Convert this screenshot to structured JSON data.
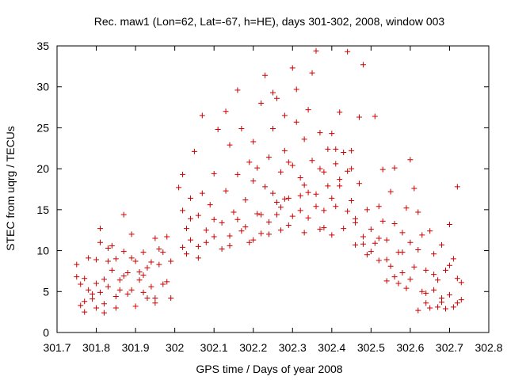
{
  "chart_data": {
    "type": "scatter",
    "title": "Rec. maw1 (Lon=62, Lat=-67, h=HE), days 301-302, 2008, window 003",
    "xlabel": "GPS time / Days of year 2008",
    "ylabel": "STEC from uqrg / TECUs",
    "xlim": [
      301.7,
      302.8
    ],
    "ylim": [
      0,
      35
    ],
    "xticks": [
      301.7,
      301.8,
      301.9,
      302.0,
      302.1,
      302.2,
      302.3,
      302.4,
      302.5,
      302.6,
      302.7,
      302.8
    ],
    "xtick_labels": [
      "301.7",
      "301.8",
      "301.9",
      "302",
      "302.1",
      "302.2",
      "302.3",
      "302.4",
      "302.5",
      "302.6",
      "302.7",
      "302.8"
    ],
    "yticks": [
      0,
      5,
      10,
      15,
      20,
      25,
      30,
      35
    ],
    "ytick_labels": [
      "0",
      "5",
      "10",
      "15",
      "20",
      "25",
      "30",
      "35"
    ],
    "marker": "plus",
    "color": "#cc0000",
    "grid": false,
    "legend": "none",
    "series": [
      {
        "points": [
          [
            301.75,
            8.3
          ],
          [
            301.75,
            6.8
          ],
          [
            301.76,
            5.9
          ],
          [
            301.76,
            3.3
          ],
          [
            301.77,
            6.6
          ],
          [
            301.77,
            2.5
          ],
          [
            301.78,
            9.1
          ],
          [
            301.78,
            5.2
          ],
          [
            301.79,
            4.1
          ],
          [
            301.8,
            6.0
          ],
          [
            301.8,
            3.0
          ],
          [
            301.81,
            11.0
          ],
          [
            301.81,
            12.7
          ],
          [
            301.82,
            6.5
          ],
          [
            301.82,
            3.5
          ],
          [
            301.83,
            8.7
          ],
          [
            301.83,
            5.6
          ],
          [
            301.84,
            10.6
          ],
          [
            301.84,
            7.6
          ],
          [
            301.85,
            4.4
          ],
          [
            301.85,
            3.0
          ],
          [
            301.86,
            6.4
          ],
          [
            301.87,
            14.4
          ],
          [
            301.87,
            9.9
          ],
          [
            301.88,
            4.7
          ],
          [
            301.88,
            7.3
          ],
          [
            301.89,
            12.0
          ],
          [
            301.89,
            5.2
          ],
          [
            301.9,
            8.7
          ],
          [
            301.9,
            3.2
          ],
          [
            301.91,
            6.4
          ],
          [
            301.92,
            9.8
          ],
          [
            301.93,
            4.2
          ],
          [
            301.93,
            7.9
          ],
          [
            301.94,
            5.6
          ],
          [
            301.95,
            11.5
          ],
          [
            301.95,
            3.6
          ],
          [
            301.96,
            8.3
          ],
          [
            301.97,
            9.8
          ],
          [
            301.98,
            6.2
          ],
          [
            301.99,
            8.7
          ],
          [
            301.99,
            4.2
          ],
          [
            301.98,
            11.7
          ],
          [
            301.97,
            5.9
          ],
          [
            301.96,
            10.2
          ],
          [
            301.94,
            8.6
          ],
          [
            301.92,
            4.9
          ],
          [
            301.91,
            7.4
          ],
          [
            301.86,
            5.2
          ],
          [
            301.79,
            4.7
          ],
          [
            301.8,
            8.9
          ],
          [
            301.82,
            2.4
          ],
          [
            301.77,
            3.8
          ],
          [
            301.83,
            10.3
          ],
          [
            301.87,
            6.9
          ],
          [
            301.89,
            9.1
          ],
          [
            301.92,
            7.0
          ],
          [
            301.95,
            4.2
          ],
          [
            301.81,
            4.9
          ],
          [
            301.85,
            9.0
          ],
          [
            302.01,
            17.7
          ],
          [
            302.02,
            14.9
          ],
          [
            302.02,
            19.3
          ],
          [
            302.03,
            12.7
          ],
          [
            302.03,
            9.6
          ],
          [
            302.04,
            16.4
          ],
          [
            302.04,
            11.3
          ],
          [
            302.05,
            22.1
          ],
          [
            302.06,
            14.3
          ],
          [
            302.06,
            10.5
          ],
          [
            302.07,
            26.5
          ],
          [
            302.07,
            17.0
          ],
          [
            302.08,
            12.5
          ],
          [
            302.09,
            15.6
          ],
          [
            302.1,
            19.4
          ],
          [
            302.1,
            11.7
          ],
          [
            302.11,
            24.8
          ],
          [
            302.12,
            13.4
          ],
          [
            302.13,
            27.0
          ],
          [
            302.13,
            17.3
          ],
          [
            302.14,
            10.6
          ],
          [
            302.14,
            22.9
          ],
          [
            302.15,
            14.7
          ],
          [
            302.16,
            19.3
          ],
          [
            302.16,
            29.6
          ],
          [
            302.17,
            12.4
          ],
          [
            302.17,
            24.9
          ],
          [
            302.18,
            16.2
          ],
          [
            302.19,
            20.8
          ],
          [
            302.19,
            11.0
          ],
          [
            302.2,
            18.5
          ],
          [
            302.2,
            23.3
          ],
          [
            302.21,
            14.5
          ],
          [
            302.22,
            28.0
          ],
          [
            302.22,
            12.1
          ],
          [
            302.23,
            31.4
          ],
          [
            302.23,
            17.8
          ],
          [
            302.24,
            21.4
          ],
          [
            302.24,
            13.5
          ],
          [
            302.25,
            29.3
          ],
          [
            302.25,
            24.9
          ],
          [
            302.26,
            15.9
          ],
          [
            302.26,
            28.6
          ],
          [
            302.27,
            19.6
          ],
          [
            302.27,
            12.5
          ],
          [
            302.28,
            26.5
          ],
          [
            302.28,
            22.2
          ],
          [
            302.29,
            16.4
          ],
          [
            302.29,
            13.1
          ],
          [
            302.3,
            32.3
          ],
          [
            302.3,
            20.4
          ],
          [
            302.31,
            25.7
          ],
          [
            302.31,
            29.7
          ],
          [
            302.32,
            14.9
          ],
          [
            302.32,
            18.9
          ],
          [
            302.33,
            23.6
          ],
          [
            302.33,
            12.2
          ],
          [
            302.34,
            27.2
          ],
          [
            302.34,
            17.1
          ],
          [
            302.35,
            21.0
          ],
          [
            302.35,
            31.7
          ],
          [
            302.36,
            34.4
          ],
          [
            302.36,
            15.4
          ],
          [
            302.37,
            24.4
          ],
          [
            302.37,
            12.6
          ],
          [
            302.38,
            19.6
          ],
          [
            302.38,
            14.9
          ],
          [
            302.39,
            22.4
          ],
          [
            302.39,
            17.9
          ],
          [
            302.4,
            24.3
          ],
          [
            302.4,
            11.9
          ],
          [
            302.41,
            20.6
          ],
          [
            302.41,
            15.4
          ],
          [
            302.42,
            26.9
          ],
          [
            302.42,
            18.7
          ],
          [
            302.43,
            22.0
          ],
          [
            302.43,
            12.7
          ],
          [
            302.44,
            34.3
          ],
          [
            302.44,
            19.7
          ],
          [
            302.45,
            16.1
          ],
          [
            302.45,
            22.2
          ],
          [
            302.46,
            13.9
          ],
          [
            302.46,
            10.7
          ],
          [
            302.47,
            26.3
          ],
          [
            302.47,
            18.2
          ],
          [
            302.48,
            32.7
          ],
          [
            302.48,
            11.7
          ],
          [
            302.49,
            15.0
          ],
          [
            302.49,
            9.5
          ],
          [
            302.5,
            12.6
          ],
          [
            302.51,
            26.4
          ],
          [
            302.51,
            10.9
          ],
          [
            302.52,
            15.4
          ],
          [
            302.52,
            8.8
          ],
          [
            302.53,
            19.9
          ],
          [
            302.53,
            13.6
          ],
          [
            302.54,
            11.3
          ],
          [
            302.54,
            6.3
          ],
          [
            302.55,
            17.2
          ],
          [
            302.55,
            8.1
          ],
          [
            302.56,
            20.1
          ],
          [
            302.56,
            13.3
          ],
          [
            302.57,
            9.8
          ],
          [
            302.57,
            6.0
          ],
          [
            302.58,
            12.2
          ],
          [
            302.58,
            7.3
          ],
          [
            302.59,
            15.2
          ],
          [
            302.59,
            5.4
          ],
          [
            302.6,
            21.1
          ],
          [
            302.6,
            11.0
          ],
          [
            302.61,
            17.6
          ],
          [
            302.61,
            8.0
          ],
          [
            302.62,
            14.7
          ],
          [
            302.62,
            2.7
          ],
          [
            302.63,
            11.9
          ],
          [
            302.63,
            5.0
          ],
          [
            302.64,
            3.6
          ],
          [
            302.64,
            7.6
          ],
          [
            302.65,
            12.4
          ],
          [
            302.65,
            3.0
          ],
          [
            302.66,
            9.6
          ],
          [
            302.66,
            5.2
          ],
          [
            302.67,
            6.4
          ],
          [
            302.67,
            3.1
          ],
          [
            302.68,
            10.7
          ],
          [
            302.68,
            4.2
          ],
          [
            302.69,
            7.6
          ],
          [
            302.69,
            2.9
          ],
          [
            302.7,
            13.2
          ],
          [
            302.7,
            4.6
          ],
          [
            302.71,
            9.0
          ],
          [
            302.71,
            3.1
          ],
          [
            302.72,
            17.8
          ],
          [
            302.72,
            6.6
          ],
          [
            302.73,
            4.0
          ],
          [
            302.73,
            6.1
          ],
          [
            302.72,
            3.6
          ],
          [
            302.7,
            8.2
          ],
          [
            302.68,
            3.7
          ],
          [
            302.66,
            7.1
          ],
          [
            302.64,
            4.8
          ],
          [
            302.62,
            10.1
          ],
          [
            302.6,
            6.5
          ],
          [
            302.58,
            9.8
          ],
          [
            302.56,
            6.8
          ],
          [
            302.54,
            8.9
          ],
          [
            302.52,
            11.5
          ],
          [
            302.5,
            9.9
          ],
          [
            302.48,
            10.8
          ],
          [
            302.46,
            13.4
          ],
          [
            302.44,
            14.8
          ],
          [
            302.42,
            17.9
          ],
          [
            302.4,
            16.4
          ],
          [
            302.38,
            12.8
          ],
          [
            302.36,
            16.9
          ],
          [
            302.34,
            14.0
          ],
          [
            302.32,
            16.7
          ],
          [
            302.3,
            14.2
          ],
          [
            302.28,
            16.3
          ],
          [
            302.26,
            14.4
          ],
          [
            302.24,
            12.0
          ],
          [
            302.22,
            14.4
          ],
          [
            302.2,
            11.3
          ],
          [
            302.18,
            12.9
          ],
          [
            302.16,
            13.8
          ],
          [
            302.14,
            11.8
          ],
          [
            302.12,
            10.2
          ],
          [
            302.1,
            13.8
          ],
          [
            302.08,
            11.0
          ],
          [
            302.06,
            9.1
          ],
          [
            302.04,
            13.9
          ],
          [
            302.02,
            10.4
          ],
          [
            302.21,
            20.1
          ],
          [
            302.25,
            17.0
          ],
          [
            302.29,
            20.8
          ],
          [
            302.33,
            18.0
          ],
          [
            302.37,
            20.0
          ],
          [
            302.41,
            22.4
          ],
          [
            302.45,
            20.0
          ],
          [
            302.27,
            15.3
          ]
        ]
      }
    ]
  }
}
